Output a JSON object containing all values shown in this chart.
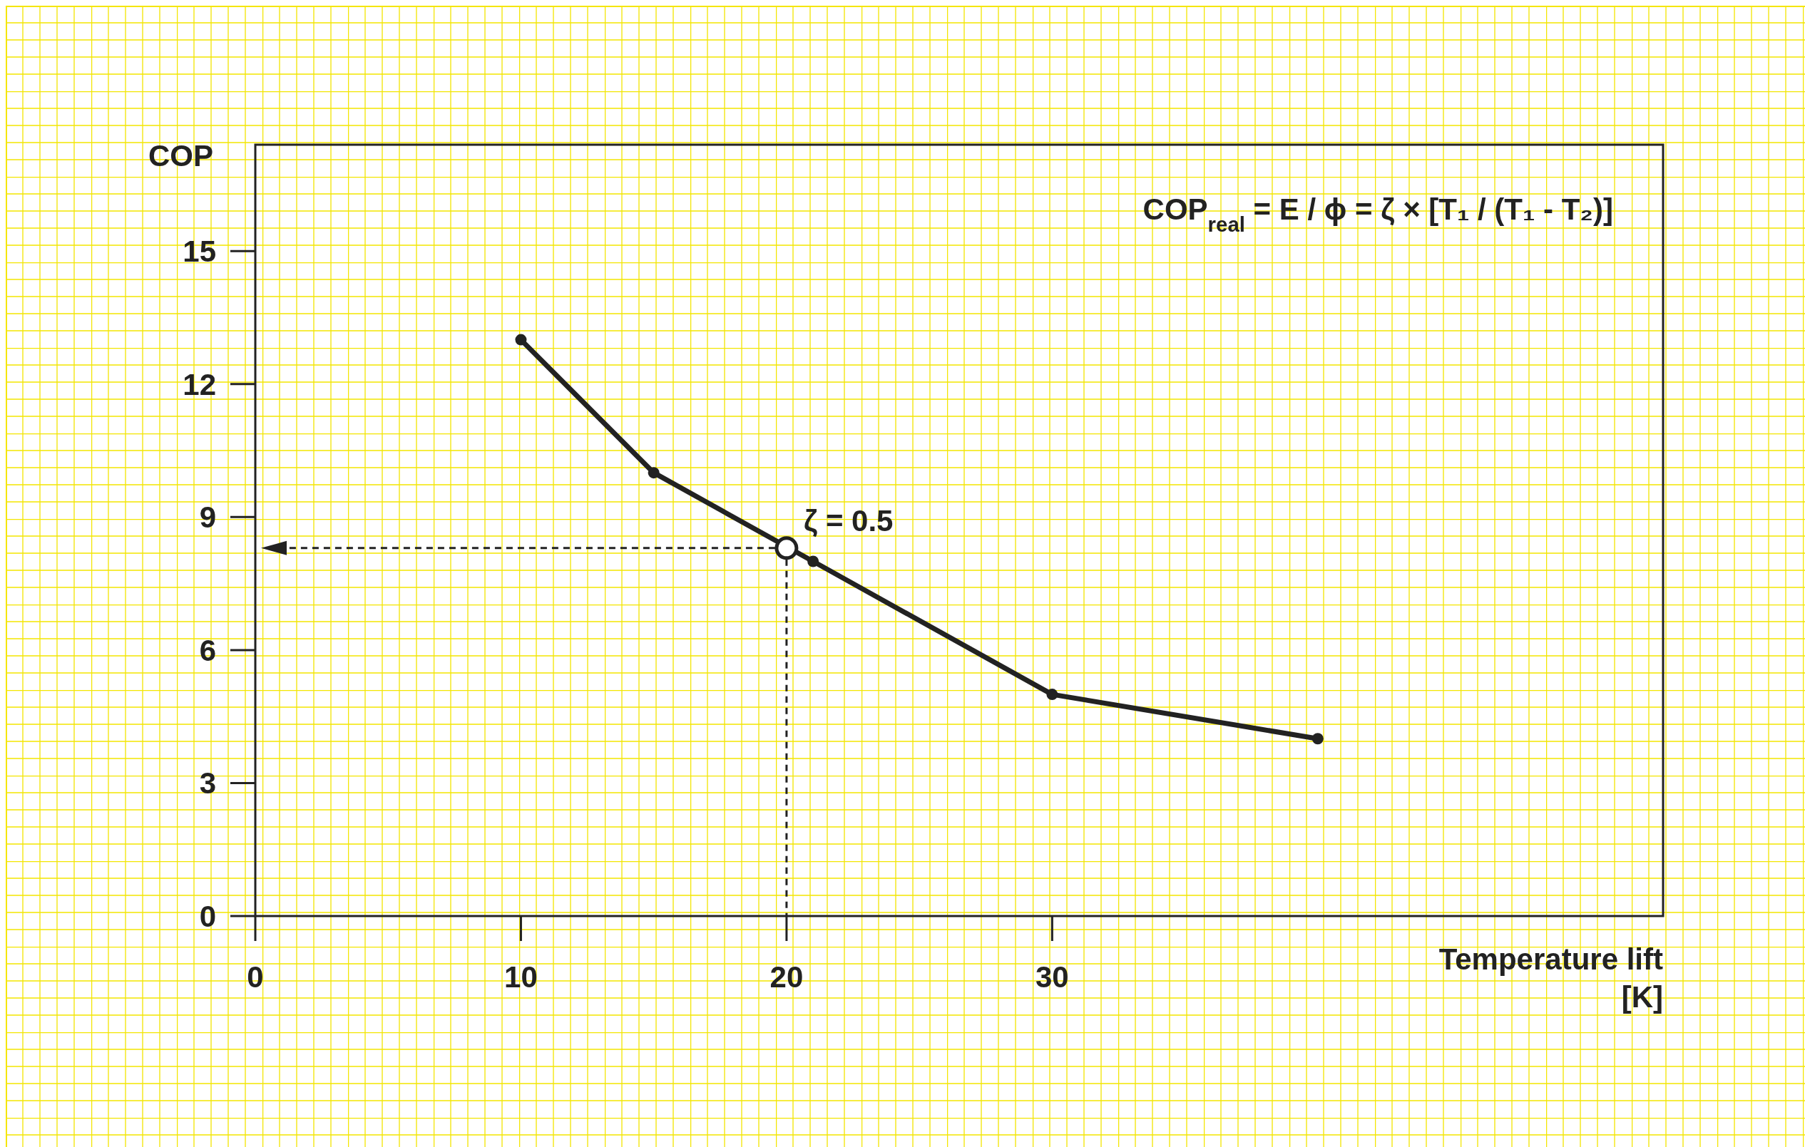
{
  "chart_data": {
    "type": "line",
    "xlabel": "Temperature lift [K]",
    "ylabel": "COP",
    "x": [
      10,
      15,
      21,
      30,
      40
    ],
    "series": [
      {
        "type": "line",
        "color": "#222222",
        "values": [
          13,
          10,
          8,
          5,
          4
        ],
        "marker": "circle"
      },
      {
        "type": "scatter",
        "color": "#222222",
        "x": [
          20
        ],
        "values": [
          8.3
        ],
        "marker": "circle"
      }
    ],
    "xlim": [
      0,
      53
    ],
    "xticks": [
      0,
      10,
      20,
      30
    ],
    "ylim": [
      0,
      17.4
    ],
    "yticks": [
      0,
      3,
      6,
      9,
      12,
      15
    ],
    "grid": false,
    "annotations": [
      "COP$_{real}$ = E / ϕ = ζ × [T₁ / (T₁ - T₂)]",
      {
        "text": "ζ = 0.5",
        "x": 20,
        "y": 8.3
      }
    ]
  }
}
